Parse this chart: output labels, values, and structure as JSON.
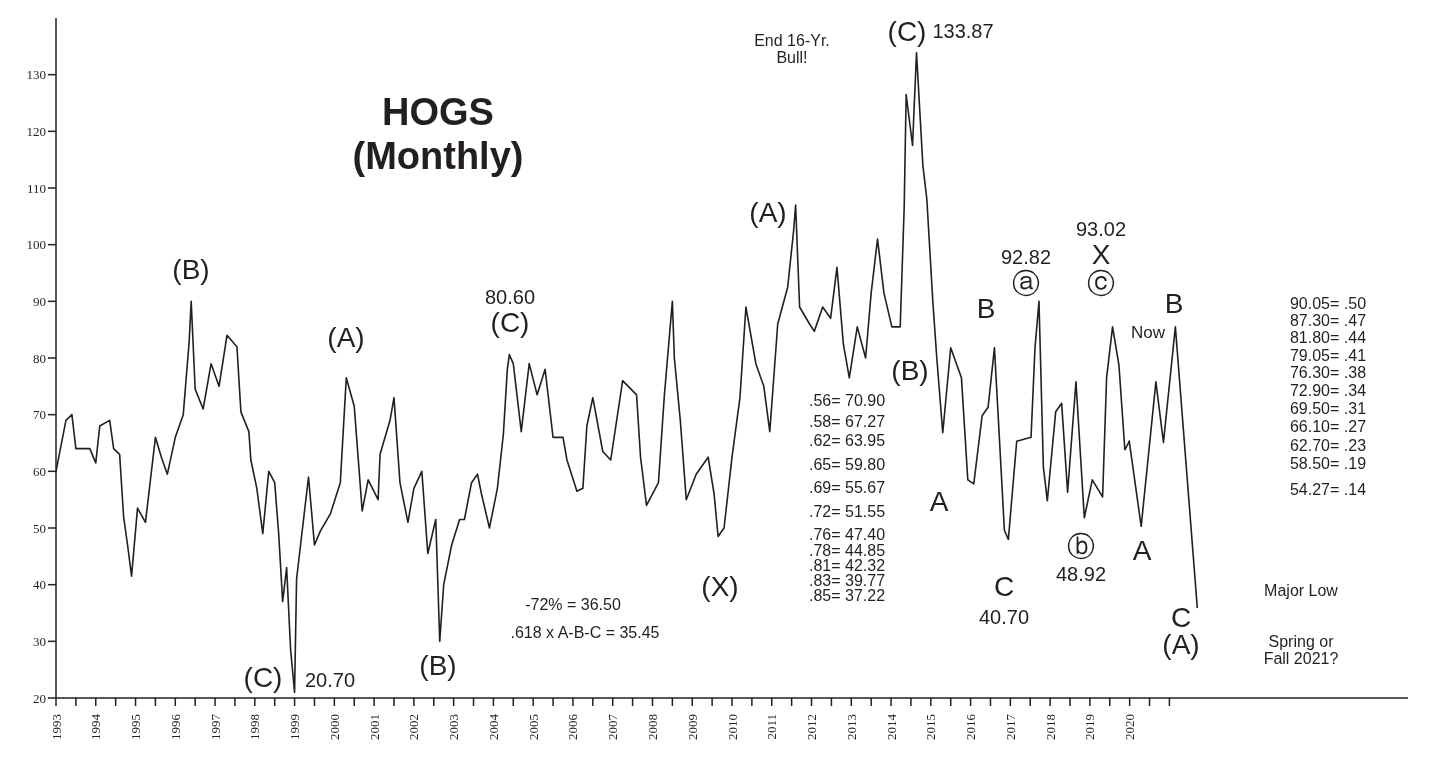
{
  "chart_data": {
    "type": "line",
    "title": "HOGS",
    "subtitle": "(Monthly)",
    "xlim": [
      1993,
      2027
    ],
    "ylim": [
      20,
      140
    ],
    "xticks": [
      1993,
      {
        "value": 1993.5,
        "label": null
      },
      1994,
      {
        "value": 1994.5,
        "label": null
      },
      1995,
      {
        "value": 1995.5,
        "label": null
      },
      1996,
      {
        "value": 1996.5,
        "label": null
      },
      1997,
      {
        "value": 1997.5,
        "label": null
      },
      1998,
      {
        "value": 1998.5,
        "label": null
      },
      1999,
      {
        "value": 1999.5,
        "label": null
      },
      2000,
      {
        "value": 2000.5,
        "label": null
      },
      2001,
      {
        "value": 2001.5,
        "label": null
      },
      2002,
      {
        "value": 2002.5,
        "label": null
      },
      2003,
      {
        "value": 2003.5,
        "label": null
      },
      2004,
      {
        "value": 2004.5,
        "label": null
      },
      2005,
      {
        "value": 2005.5,
        "label": null
      },
      2006,
      {
        "value": 2006.5,
        "label": null
      },
      2007,
      {
        "value": 2007.5,
        "label": null
      },
      2008,
      {
        "value": 2008.5,
        "label": null
      },
      2009,
      {
        "value": 2009.5,
        "label": null
      },
      2010,
      {
        "value": 2010.5,
        "label": null
      },
      2011,
      {
        "value": 2011.5,
        "label": null
      },
      2012,
      {
        "value": 2012.5,
        "label": null
      },
      2013,
      {
        "value": 2013.5,
        "label": null
      },
      2014,
      {
        "value": 2014.5,
        "label": null
      },
      2015,
      {
        "value": 2015.5,
        "label": null
      },
      2016,
      {
        "value": 2016.5,
        "label": null
      },
      2017,
      {
        "value": 2017.5,
        "label": null
      },
      2018,
      {
        "value": 2018.5,
        "label": null
      },
      2019,
      {
        "value": 2019.5,
        "label": null
      },
      2020,
      {
        "value": 2020.5,
        "label": null
      },
      {
        "value": 2021,
        "label": null
      }
    ],
    "yticks": [
      20,
      30,
      40,
      50,
      60,
      70,
      80,
      90,
      100,
      110,
      120,
      130
    ],
    "line_style": "solid",
    "series": [
      {
        "color": "#231f20",
        "x": [
          1993.0,
          1993.25,
          1993.4,
          1993.5,
          1993.85,
          1994.0,
          1994.1,
          1994.35,
          1994.45,
          1994.6,
          1994.7,
          1994.8,
          1994.9,
          1995.05,
          1995.25,
          1995.35,
          1995.5,
          1995.65,
          1995.8,
          1996.0,
          1996.2,
          1996.35,
          1996.4,
          1996.5,
          1996.7,
          1996.9,
          1997.1,
          1997.3,
          1997.55,
          1997.65,
          1997.85,
          1997.9,
          1998.05,
          1998.2,
          1998.35,
          1998.5,
          1998.6,
          1998.7,
          1998.8,
          1998.9,
          1999.0,
          1999.05,
          1999.35,
          1999.5,
          1999.65,
          1999.9,
          2000.15,
          2000.3,
          2000.5,
          2000.7,
          2000.85,
          2001.1,
          2001.15,
          2001.4,
          2001.5,
          2001.65,
          2001.85,
          2002.0,
          2002.2,
          2002.35,
          2002.55,
          2002.65,
          2002.75,
          2002.95,
          2003.15,
          2003.27,
          2003.45,
          2003.6,
          2003.7,
          2003.9,
          2004.1,
          2004.25,
          2004.35,
          2004.4,
          2004.5,
          2004.7,
          2004.9,
          2005.1,
          2005.3,
          2005.5,
          2005.75,
          2005.85,
          2006.1,
          2006.25,
          2006.35,
          2006.5,
          2006.75,
          2006.95,
          2007.25,
          2007.6,
          2007.7,
          2007.85,
          2008.15,
          2008.3,
          2008.5,
          2008.55,
          2008.7,
          2008.85,
          2009.1,
          2009.4,
          2009.55,
          2009.65,
          2009.8,
          2010.0,
          2010.2,
          2010.35,
          2010.6,
          2010.8,
          2010.95,
          2011.15,
          2011.4,
          2011.55,
          2011.6,
          2011.7,
          2011.95,
          2012.07,
          2012.28,
          2012.48,
          2012.64,
          2012.8,
          2012.95,
          2013.15,
          2013.36,
          2013.5,
          2013.66,
          2013.82,
          2014.02,
          2014.23,
          2014.33,
          2014.38,
          2014.54,
          2014.64,
          2014.8,
          2014.9,
          2015.05,
          2015.15,
          2015.3,
          2015.5,
          2015.77,
          2015.93,
          2016.08,
          2016.29,
          2016.44,
          2016.6,
          2016.7,
          2016.85,
          2016.95,
          2017.16,
          2017.52,
          2017.62,
          2017.72,
          2017.83,
          2017.93,
          2018.14,
          2018.29,
          2018.44,
          2018.65,
          2018.86,
          2019.06,
          2019.32,
          2019.42,
          2019.57,
          2019.73,
          2019.88,
          2019.99
        ],
        "values": [
          60,
          69,
          70,
          64,
          64,
          61.5,
          68,
          69,
          64,
          63,
          52,
          47,
          41.5,
          53.5,
          51,
          57,
          66,
          62.5,
          59.5,
          66,
          70,
          83,
          90,
          74.5,
          71,
          79,
          75,
          84,
          82,
          70.5,
          67,
          62,
          57,
          49,
          60,
          58,
          49,
          37,
          43,
          28.5,
          21,
          41,
          59,
          47,
          49.5,
          52.5,
          58,
          76.5,
          71.5,
          53,
          58.5,
          55,
          63,
          69,
          73,
          58,
          51,
          57,
          60,
          45.5,
          51.5,
          30,
          40,
          47,
          51.5,
          51.5,
          58,
          59.5,
          56,
          50,
          57,
          66.5,
          78,
          80.6,
          79,
          67,
          79,
          73.5,
          78,
          66,
          66,
          62,
          56.5,
          57,
          68,
          73,
          63.5,
          62,
          76,
          73.5,
          62.5,
          54,
          58,
          73.5,
          90,
          80,
          69,
          55,
          59.5,
          62.5,
          56,
          48.5,
          50,
          62.5,
          73,
          89,
          79,
          75,
          67,
          86,
          92.5,
          102.5,
          107,
          89,
          86,
          84.7,
          89,
          87,
          96,
          82.5,
          76.5,
          85.5,
          80,
          91.5,
          101,
          91.5,
          85.5,
          85.5,
          106.5,
          126.5,
          117.5,
          133.87,
          114,
          108,
          90,
          80,
          66.8,
          81.8,
          76.5,
          58.5,
          57.8,
          69.8,
          71.3,
          81.8,
          69,
          49.6,
          48,
          65.3,
          66,
          81.8,
          90,
          60.8,
          54.8,
          70.5,
          72,
          56.3,
          75.8,
          51.8,
          58.5,
          55.5,
          76.5,
          85.5,
          78.8,
          63.8,
          65.3
        ]
      },
      {
        "color": "#231f20",
        "x": [
          2019.99,
          2020.29,
          2020.66,
          2020.85,
          2021.15,
          2021.7
        ],
        "values": [
          65.3,
          50.3,
          75.8,
          65.1,
          85.5,
          36
        ]
      }
    ],
    "annotations": [
      "(B)",
      "(A)",
      "80.60",
      "(C)",
      "(C)",
      "20.70",
      "(B)",
      "(X)",
      "(A)",
      "End 16-Yr.\nBull!",
      "(C)",
      "133.87",
      "(B)",
      "A",
      "B",
      "C",
      "40.70",
      "92.82",
      "ⓐ",
      "ⓑ",
      "48.92",
      "93.02",
      "X",
      "ⓒ",
      "Now",
      "A",
      "B",
      "C",
      "(A)",
      "Major Low",
      "Spring or\nFall 2021?",
      "-72% = 36.50",
      ".618 x A-B-C = 35.45",
      ".56= 70.90",
      ".58= 67.27",
      ".62= 63.95",
      ".65= 59.80",
      ".69= 55.67",
      ".72= 51.55",
      ".76= 47.40",
      ".78= 44.85",
      ".81= 42.32",
      ".83= 39.77",
      ".85= 37.22",
      "90.05= .50",
      "87.30= .47",
      "81.80= .44",
      "79.05= .41",
      "76.30= .38",
      "72.90= .34",
      "69.50= .31",
      "66.10= .27",
      "62.70= .23",
      "58.50= .19",
      "54.27= .14"
    ]
  }
}
